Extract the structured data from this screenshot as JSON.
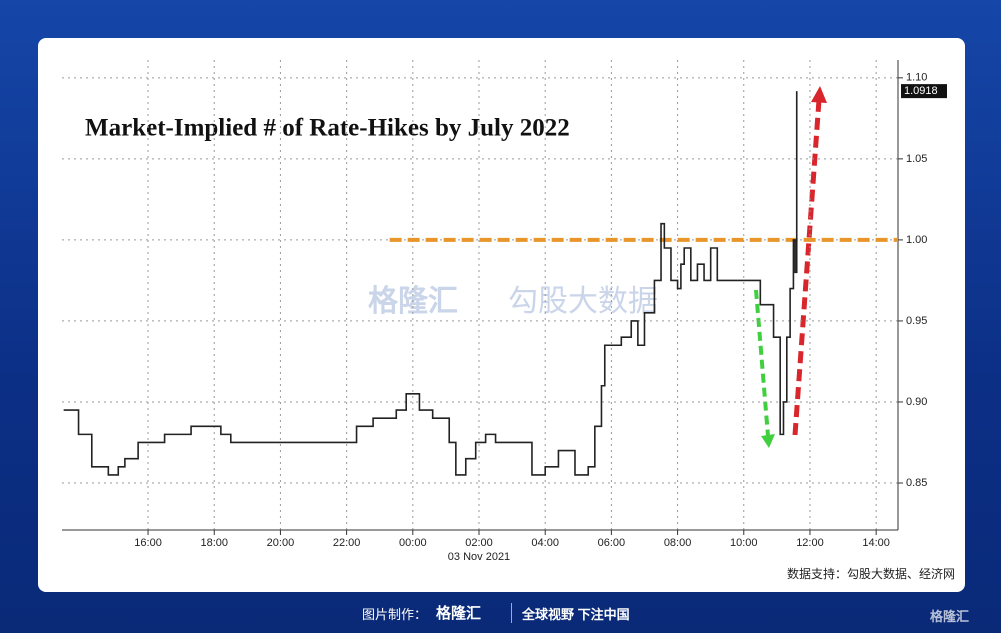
{
  "chart_data": {
    "type": "line",
    "title": "Market-Implied # of Rate-Hikes by July 2022",
    "x_sublabel": "03 Nov 2021",
    "xlim": [
      13.4,
      38.66
    ],
    "ylim": [
      0.821,
      1.111
    ],
    "xticks": [
      {
        "value": 16,
        "label": "16:00"
      },
      {
        "value": 18,
        "label": "18:00"
      },
      {
        "value": 20,
        "label": "20:00"
      },
      {
        "value": 22,
        "label": "22:00"
      },
      {
        "value": 24,
        "label": "00:00"
      },
      {
        "value": 26,
        "label": "02:00"
      },
      {
        "value": 28,
        "label": "04:00"
      },
      {
        "value": 30,
        "label": "06:00"
      },
      {
        "value": 32,
        "label": "08:00"
      },
      {
        "value": 34,
        "label": "10:00"
      },
      {
        "value": 36,
        "label": "12:00"
      },
      {
        "value": 38,
        "label": "14:00"
      }
    ],
    "yticks": [
      {
        "value": 0.85,
        "label": "0.85"
      },
      {
        "value": 0.9,
        "label": "0.90"
      },
      {
        "value": 0.95,
        "label": "0.95"
      },
      {
        "value": 1.0,
        "label": "1.00"
      },
      {
        "value": 1.05,
        "label": "1.05"
      },
      {
        "value": 1.1,
        "label": "1.10"
      }
    ],
    "grid": true,
    "step": true,
    "series": [
      {
        "color": "#222222",
        "x": [
          13.45,
          13.9,
          14.3,
          14.8,
          15.1,
          15.3,
          15.7,
          16.5,
          17.3,
          18.2,
          18.5,
          22.3,
          22.8,
          23.5,
          23.8,
          24.2,
          24.6,
          25.1,
          25.3,
          25.6,
          25.9,
          26.2,
          26.5,
          27.5,
          27.6,
          28.0,
          28.4,
          28.9,
          29.3,
          29.5,
          29.7,
          29.8,
          30.3,
          30.6,
          30.8,
          31.0,
          31.3,
          31.5,
          31.6,
          31.8,
          32.0,
          32.1,
          32.2,
          32.4,
          32.6,
          32.8,
          33.0,
          33.2,
          34.2,
          34.5,
          34.9,
          35.1,
          35.2,
          35.3,
          35.4,
          35.5,
          35.55,
          35.6
        ],
        "values": [
          0.895,
          0.88,
          0.86,
          0.855,
          0.86,
          0.865,
          0.875,
          0.88,
          0.885,
          0.88,
          0.875,
          0.885,
          0.89,
          0.895,
          0.905,
          0.895,
          0.89,
          0.875,
          0.855,
          0.865,
          0.875,
          0.88,
          0.875,
          0.875,
          0.855,
          0.86,
          0.87,
          0.855,
          0.86,
          0.885,
          0.91,
          0.935,
          0.94,
          0.95,
          0.935,
          0.955,
          0.975,
          1.01,
          0.995,
          0.975,
          0.97,
          0.985,
          0.995,
          0.975,
          0.985,
          0.975,
          0.995,
          0.975,
          0.975,
          0.96,
          0.94,
          0.88,
          0.9,
          0.94,
          0.97,
          1.0,
          0.98,
          1.0918
        ]
      }
    ],
    "last_price": {
      "value": 1.0918,
      "label": "1.0918"
    },
    "reference_line": {
      "value": 1.0,
      "x_start": 23.3,
      "color": "#e8962a"
    }
  },
  "page": {
    "source": "数据支持：勾股大数据、经济网",
    "watermark_brand": "格隆汇",
    "watermark_data": "勾股大数据",
    "footer_made_by": "图片制作：",
    "footer_brand": "格隆汇",
    "footer_slogan": "全球视野 下注中国",
    "corner_brand": "格隆汇"
  }
}
